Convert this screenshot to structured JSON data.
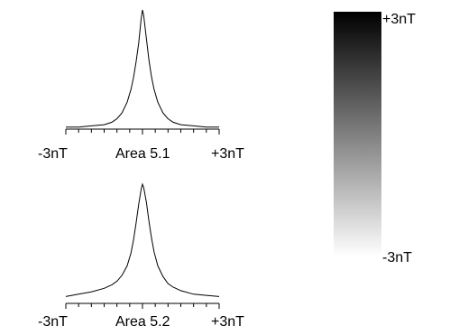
{
  "chart_data": [
    {
      "type": "line",
      "title": "Area 5.1",
      "xlim_labels": [
        "-3nT",
        "+3nT"
      ],
      "xlim": [
        -3,
        3
      ],
      "x": [
        -3.0,
        -2.5,
        -2.0,
        -1.5,
        -1.2,
        -1.0,
        -0.8,
        -0.6,
        -0.45,
        -0.35,
        -0.25,
        -0.15,
        -0.05,
        0.0,
        0.05,
        0.15,
        0.25,
        0.35,
        0.45,
        0.6,
        0.8,
        1.0,
        1.2,
        1.5,
        2.0,
        2.5,
        3.0
      ],
      "y": [
        0.01,
        0.01,
        0.02,
        0.03,
        0.05,
        0.08,
        0.13,
        0.22,
        0.33,
        0.43,
        0.56,
        0.72,
        0.93,
        1.0,
        0.95,
        0.76,
        0.58,
        0.44,
        0.33,
        0.22,
        0.13,
        0.08,
        0.05,
        0.03,
        0.02,
        0.01,
        0.01
      ]
    },
    {
      "type": "line",
      "title": "Area 5.2",
      "xlim_labels": [
        "-3nT",
        "+3nT"
      ],
      "xlim": [
        -3,
        3
      ],
      "x": [
        -3.0,
        -2.5,
        -2.0,
        -1.5,
        -1.2,
        -1.0,
        -0.8,
        -0.6,
        -0.45,
        -0.35,
        -0.25,
        -0.15,
        -0.05,
        0.0,
        0.05,
        0.15,
        0.25,
        0.35,
        0.45,
        0.6,
        0.8,
        1.0,
        1.2,
        1.5,
        2.0,
        2.5,
        3.0
      ],
      "y": [
        0.05,
        0.07,
        0.09,
        0.12,
        0.15,
        0.18,
        0.23,
        0.31,
        0.42,
        0.53,
        0.67,
        0.83,
        0.96,
        1.0,
        0.97,
        0.85,
        0.69,
        0.55,
        0.43,
        0.31,
        0.22,
        0.16,
        0.13,
        0.1,
        0.07,
        0.06,
        0.05
      ]
    }
  ],
  "colorbar": {
    "type": "colorbar",
    "max_label": "+3nT",
    "min_label": "-3nT",
    "max_color": "#000000",
    "min_color": "#ffffff"
  }
}
